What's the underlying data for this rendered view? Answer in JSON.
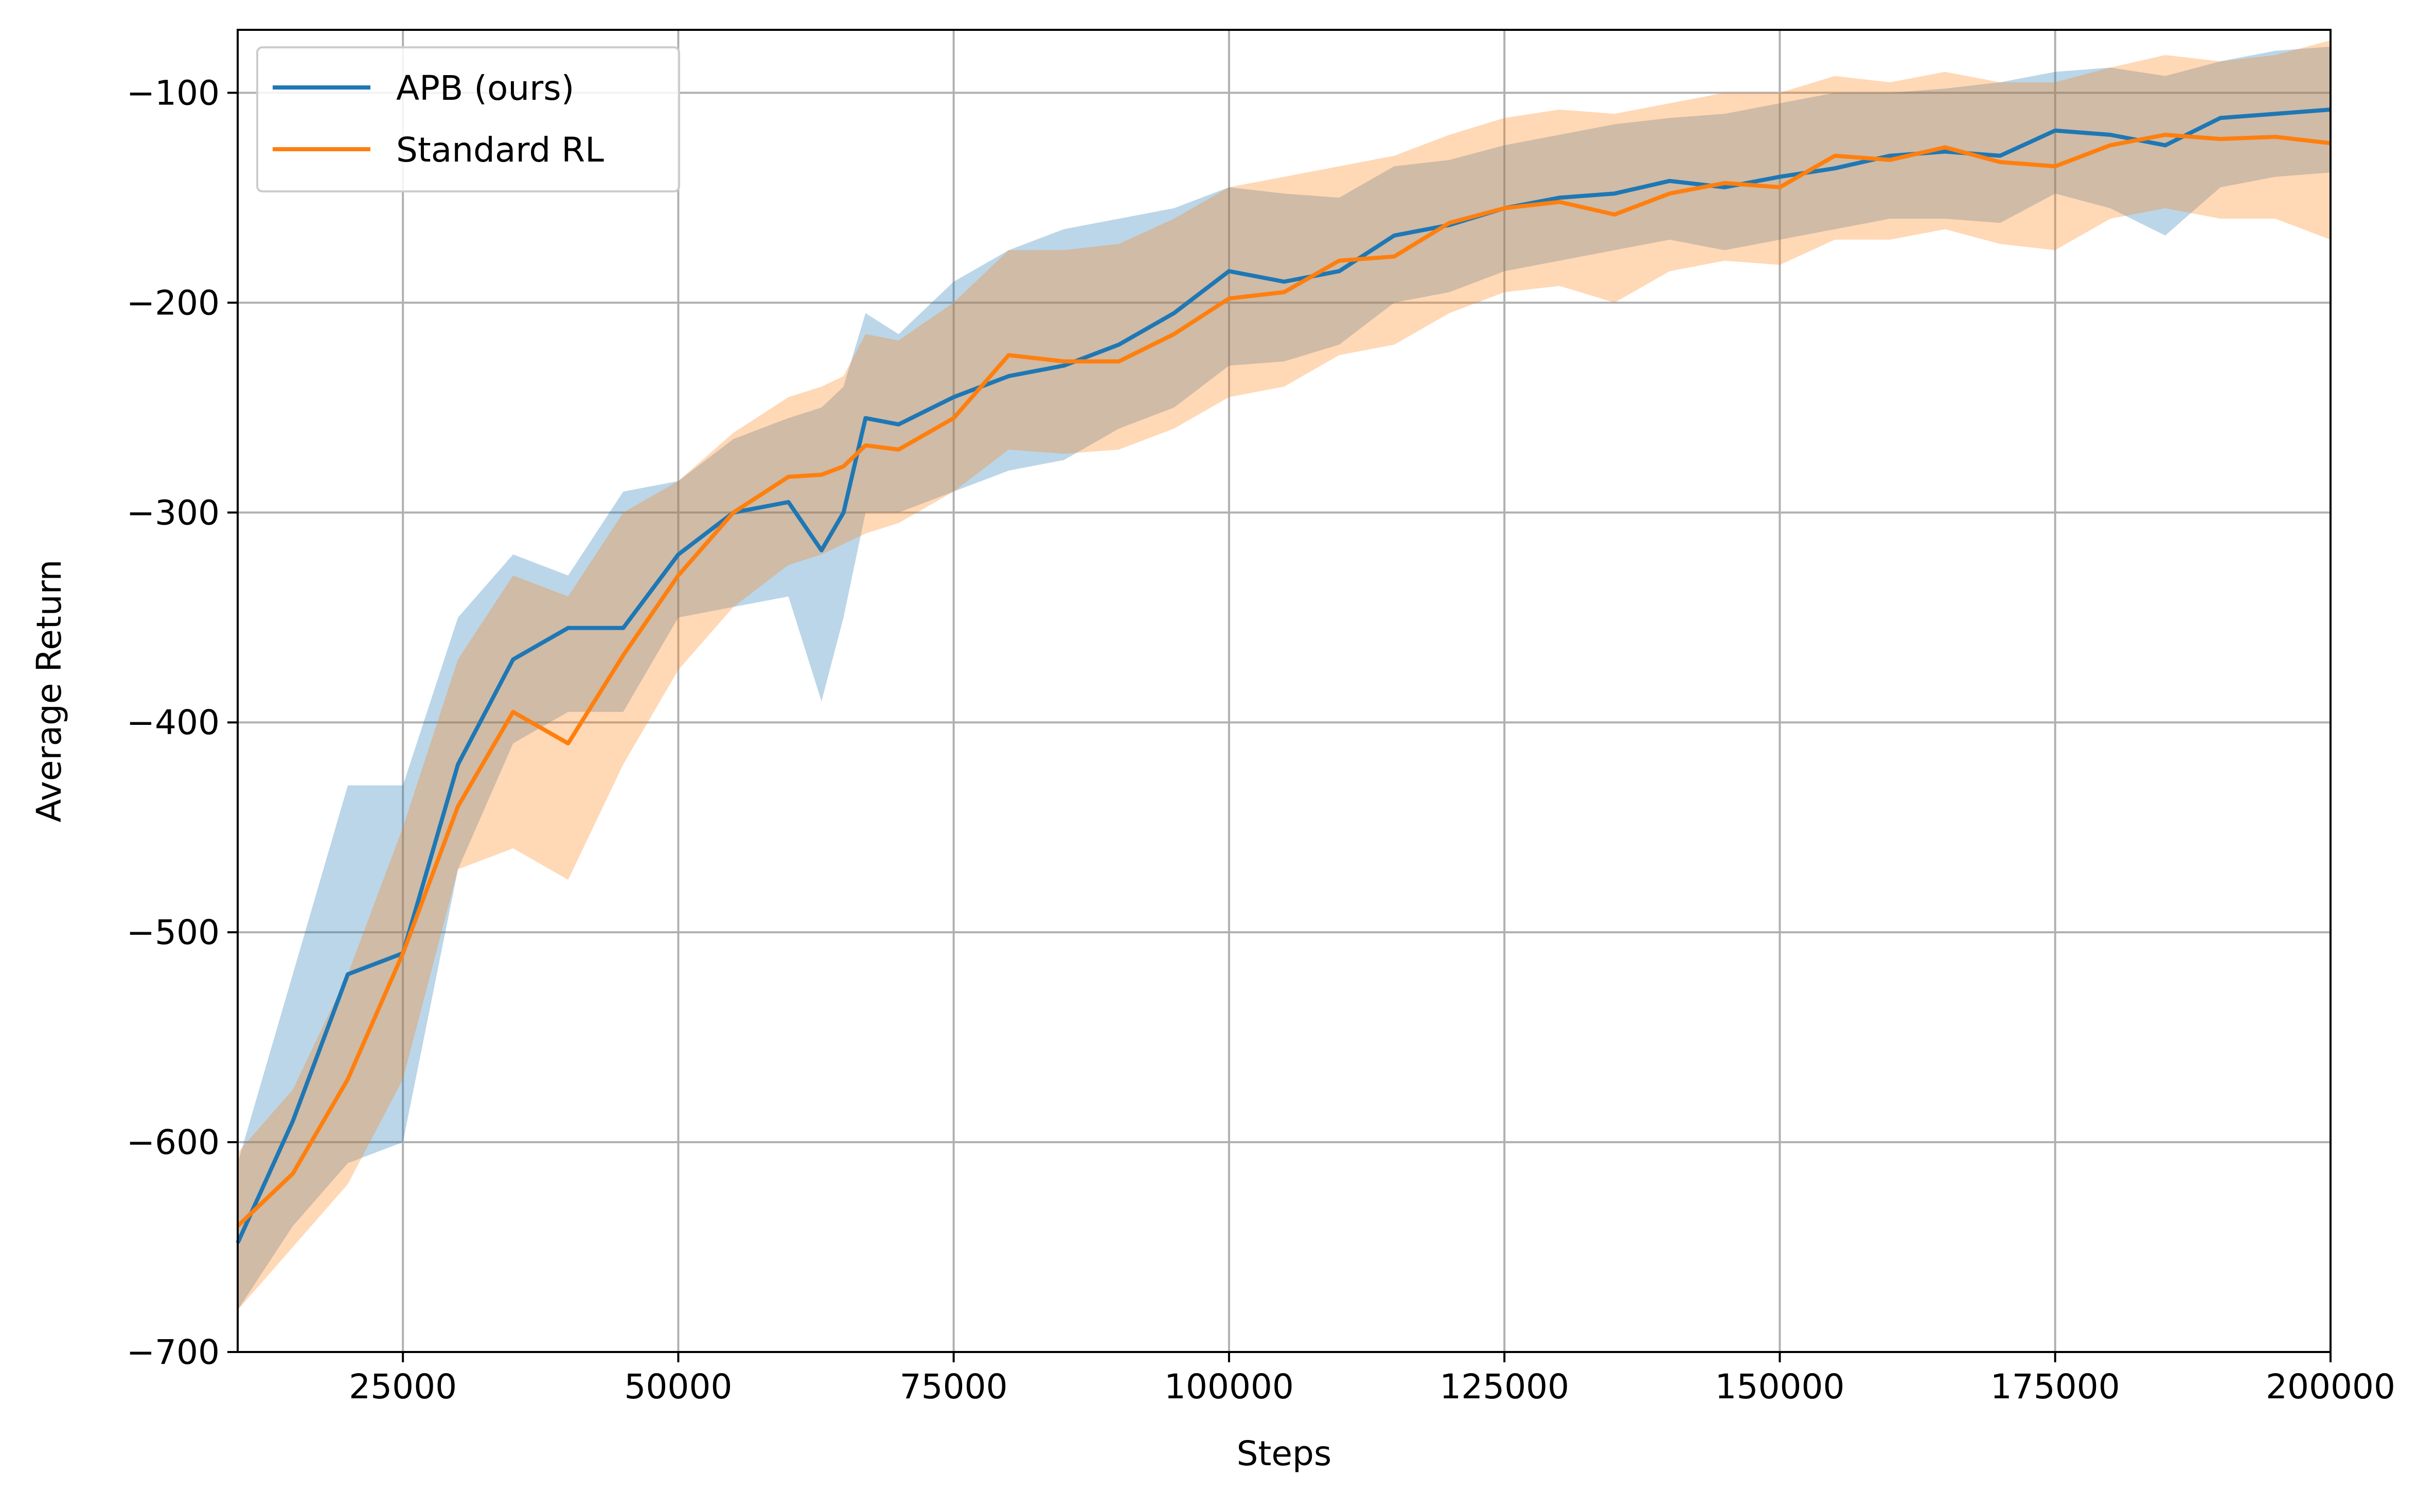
{
  "chart_data": {
    "type": "line",
    "xlabel": "Steps",
    "ylabel": "Average Return",
    "xlim": [
      10000,
      200000
    ],
    "ylim": [
      -700,
      -70
    ],
    "x_ticks": [
      25000,
      50000,
      75000,
      100000,
      125000,
      150000,
      175000,
      200000
    ],
    "x_tick_labels": [
      "25000",
      "50000",
      "75000",
      "100000",
      "125000",
      "150000",
      "175000",
      "200000"
    ],
    "y_ticks": [
      -700,
      -600,
      -500,
      -400,
      -300,
      -200,
      -100
    ],
    "y_tick_labels": [
      "−700",
      "−600",
      "−500",
      "−400",
      "−300",
      "−200",
      "−100"
    ],
    "grid": true,
    "legend_position": "top-left",
    "x": [
      10000,
      15000,
      20000,
      25000,
      30000,
      35000,
      40000,
      45000,
      50000,
      55000,
      60000,
      63000,
      65000,
      67000,
      70000,
      75000,
      80000,
      85000,
      90000,
      95000,
      100000,
      105000,
      110000,
      115000,
      120000,
      125000,
      130000,
      135000,
      140000,
      145000,
      150000,
      155000,
      160000,
      165000,
      170000,
      175000,
      180000,
      185000,
      190000,
      195000,
      200000
    ],
    "series": [
      {
        "name": "APB (ours)",
        "color": "#1f77b4",
        "values": [
          -648,
          -590,
          -520,
          -510,
          -420,
          -370,
          -355,
          -355,
          -320,
          -300,
          -295,
          -318,
          -300,
          -255,
          -258,
          -245,
          -235,
          -230,
          -220,
          -205,
          -185,
          -190,
          -185,
          -168,
          -163,
          -155,
          -150,
          -148,
          -142,
          -145,
          -140,
          -136,
          -130,
          -128,
          -130,
          -118,
          -120,
          -125,
          -112,
          -110,
          -108
        ],
        "upper": [
          -610,
          -520,
          -430,
          -430,
          -350,
          -320,
          -330,
          -290,
          -285,
          -265,
          -255,
          -250,
          -240,
          -205,
          -215,
          -190,
          -175,
          -165,
          -160,
          -155,
          -145,
          -148,
          -150,
          -135,
          -132,
          -125,
          -120,
          -115,
          -112,
          -110,
          -105,
          -100,
          -100,
          -98,
          -95,
          -90,
          -88,
          -92,
          -85,
          -80,
          -78
        ],
        "lower": [
          -680,
          -640,
          -610,
          -600,
          -470,
          -410,
          -395,
          -395,
          -350,
          -345,
          -340,
          -390,
          -350,
          -300,
          -300,
          -290,
          -280,
          -275,
          -260,
          -250,
          -230,
          -228,
          -220,
          -200,
          -195,
          -185,
          -180,
          -175,
          -170,
          -175,
          -170,
          -165,
          -160,
          -160,
          -162,
          -148,
          -155,
          -168,
          -145,
          -140,
          -138
        ]
      },
      {
        "name": "Standard RL",
        "color": "#ff7f0e",
        "values": [
          -640,
          -615,
          -570,
          -510,
          -440,
          -395,
          -410,
          -368,
          -330,
          -300,
          -283,
          -282,
          -278,
          -268,
          -270,
          -255,
          -225,
          -228,
          -228,
          -215,
          -198,
          -195,
          -180,
          -178,
          -162,
          -155,
          -152,
          -158,
          -148,
          -143,
          -145,
          -130,
          -132,
          -126,
          -133,
          -135,
          -125,
          -120,
          -122,
          -121,
          -124
        ],
        "upper": [
          -605,
          -575,
          -520,
          -450,
          -370,
          -330,
          -340,
          -300,
          -285,
          -262,
          -245,
          -240,
          -235,
          -215,
          -218,
          -200,
          -175,
          -175,
          -172,
          -160,
          -145,
          -140,
          -135,
          -130,
          -120,
          -112,
          -108,
          -110,
          -105,
          -100,
          -100,
          -92,
          -95,
          -90,
          -95,
          -95,
          -88,
          -82,
          -85,
          -82,
          -75
        ],
        "lower": [
          -680,
          -650,
          -620,
          -570,
          -470,
          -460,
          -475,
          -420,
          -375,
          -345,
          -325,
          -320,
          -315,
          -310,
          -305,
          -290,
          -270,
          -272,
          -270,
          -260,
          -245,
          -240,
          -225,
          -220,
          -205,
          -195,
          -192,
          -200,
          -185,
          -180,
          -182,
          -170,
          -170,
          -165,
          -172,
          -175,
          -160,
          -155,
          -160,
          -160,
          -170
        ]
      }
    ]
  }
}
